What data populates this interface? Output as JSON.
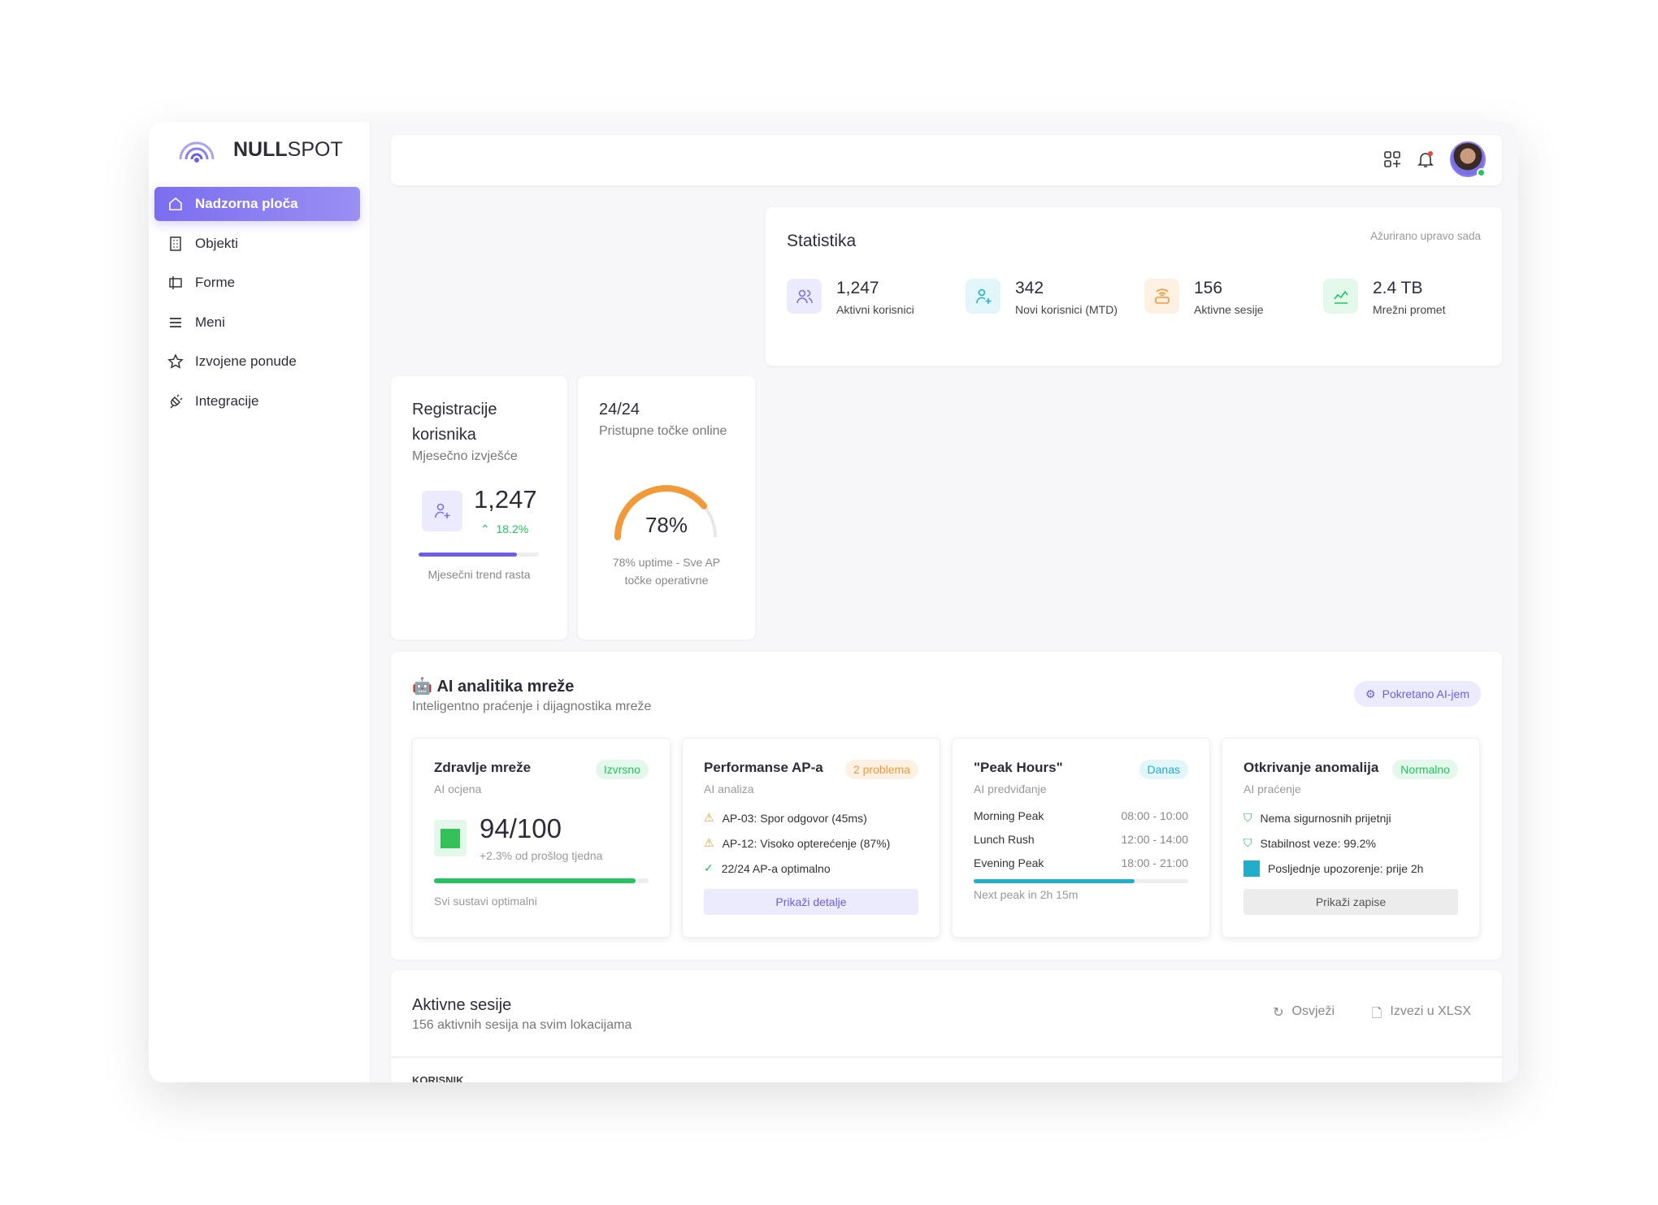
{
  "brand": {
    "name_bold": "NULL",
    "name_rest": "SPOT"
  },
  "sidebar": {
    "items": [
      {
        "label": "Nadzorna ploča",
        "icon": "home-icon",
        "active": true
      },
      {
        "label": "Objekti",
        "icon": "building-icon"
      },
      {
        "label": "Forme",
        "icon": "form-icon"
      },
      {
        "label": "Meni",
        "icon": "menu-icon"
      },
      {
        "label": "Izvojene ponude",
        "icon": "star-icon"
      },
      {
        "label": "Integracije",
        "icon": "plug-icon"
      }
    ]
  },
  "header": {
    "icons": [
      "apps-add-icon",
      "bell-icon",
      "avatar"
    ]
  },
  "stats": {
    "title": "Statistika",
    "updated": "Ažurirano upravo sada",
    "items": [
      {
        "value": "1,247",
        "label": "Aktivni korisnici",
        "color": "#7b6ef0",
        "bg": "#ecebfd",
        "icon": "users-icon"
      },
      {
        "value": "342",
        "label": "Novi korisnici (MTD)",
        "color": "#22aecb",
        "bg": "#e2f6fa",
        "icon": "user-plus-icon"
      },
      {
        "value": "156",
        "label": "Aktivne sesije",
        "color": "#f29a3a",
        "bg": "#fef0e2",
        "icon": "router-icon"
      },
      {
        "value": "2.4 TB",
        "label": "Mrežni promet",
        "color": "#22c55e",
        "bg": "#e3f8ea",
        "icon": "chart-icon"
      }
    ]
  },
  "registrations": {
    "title": "Registracije korisnika",
    "subtitle": "Mjesečno izvješće",
    "value": "1,247",
    "change": "18.2%",
    "progress": 0.82,
    "caption": "Mjesečni trend rasta"
  },
  "access_points": {
    "count": "24/24",
    "label": "Pristupne točke online",
    "percent": "78%",
    "gauge": 0.78,
    "caption": "78% uptime - Sve AP točke operativne"
  },
  "ai": {
    "title": "AI analitika mreže",
    "subtitle": "Inteligentno praćenje i dijagnostika mreže",
    "powered": "Pokretano AI-jem",
    "health": {
      "title": "Zdravlje mreže",
      "badge": "Izvrsno",
      "sub": "AI ocjena",
      "score": "94/100",
      "delta": "+2.3% od prošlog tjedna",
      "progress": 0.94,
      "caption": "Svi sustavi optimalni"
    },
    "perf": {
      "title": "Performanse AP-a",
      "badge": "2 problema",
      "sub": "AI analiza",
      "rows": [
        "AP-03: Spor odgovor (45ms)",
        "AP-12: Visoko opterećenje (87%)",
        "22/24 AP-a optimalno"
      ],
      "button": "Prikaži detalje"
    },
    "peak": {
      "title": "\"Peak Hours\"",
      "badge": "Danas",
      "sub": "AI predviđanje",
      "rows": [
        {
          "name": "Morning Peak",
          "time": "08:00 - 10:00"
        },
        {
          "name": "Lunch Rush",
          "time": "12:00 - 14:00"
        },
        {
          "name": "Evening Peak",
          "time": "18:00 - 21:00"
        }
      ],
      "progress": 0.75,
      "caption": "Next peak in 2h 15m"
    },
    "anomaly": {
      "title": "Otkrivanje anomalija",
      "badge": "Normalno",
      "sub": "AI praćenje",
      "rows": [
        "Nema sigurnosnih prijetnji",
        "Stabilnost veze: 99.2%",
        "Posljednje upozorenje: prije 2h"
      ],
      "button": "Prikaži zapise"
    }
  },
  "sessions": {
    "title": "Aktivne sesije",
    "subtitle": "156 aktivnih sesija na svim lokacijama",
    "refresh": "Osvježi",
    "export": "Izvezi u XLSX",
    "col_user": "KORISNIK"
  }
}
